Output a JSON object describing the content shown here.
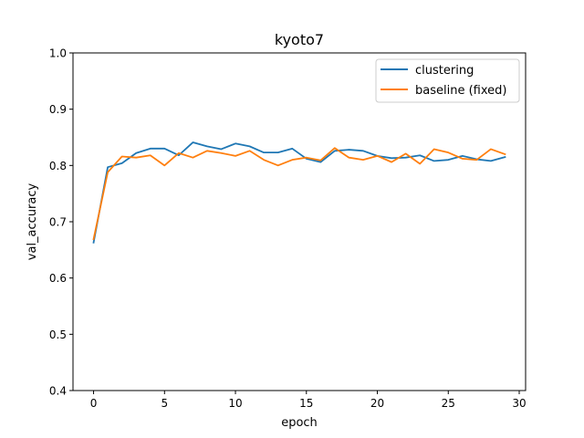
{
  "chart_data": {
    "type": "line",
    "title": "kyoto7",
    "xlabel": "epoch",
    "ylabel": "val_accuracy",
    "xlim": [
      -1.45,
      30.45
    ],
    "ylim": [
      0.4,
      1.0
    ],
    "xticks": [
      0,
      5,
      10,
      15,
      20,
      25,
      30
    ],
    "yticks": [
      0.4,
      0.5,
      0.6,
      0.7,
      0.8,
      0.9,
      1.0
    ],
    "xtick_labels": [
      "0",
      "5",
      "10",
      "15",
      "20",
      "25",
      "30"
    ],
    "ytick_labels": [
      "0.4",
      "0.5",
      "0.6",
      "0.7",
      "0.8",
      "0.9",
      "1.0"
    ],
    "grid": false,
    "legend_position": "top-right",
    "x": [
      0,
      1,
      2,
      3,
      4,
      5,
      6,
      7,
      8,
      9,
      10,
      11,
      12,
      13,
      14,
      15,
      16,
      17,
      18,
      19,
      20,
      21,
      22,
      23,
      24,
      25,
      26,
      27,
      28,
      29
    ],
    "series": [
      {
        "name": "clustering",
        "color": "#1f77b4",
        "values": [
          0.663,
          0.797,
          0.804,
          0.822,
          0.83,
          0.83,
          0.818,
          0.841,
          0.834,
          0.829,
          0.839,
          0.834,
          0.823,
          0.823,
          0.83,
          0.812,
          0.806,
          0.826,
          0.828,
          0.826,
          0.817,
          0.813,
          0.814,
          0.818,
          0.808,
          0.81,
          0.817,
          0.811,
          0.808,
          0.815
        ]
      },
      {
        "name": "baseline (fixed)",
        "color": "#ff7f0e",
        "values": [
          0.669,
          0.788,
          0.816,
          0.814,
          0.818,
          0.8,
          0.822,
          0.814,
          0.826,
          0.822,
          0.817,
          0.826,
          0.81,
          0.8,
          0.81,
          0.814,
          0.809,
          0.831,
          0.814,
          0.81,
          0.817,
          0.806,
          0.821,
          0.803,
          0.829,
          0.823,
          0.812,
          0.81,
          0.829,
          0.82
        ]
      }
    ]
  }
}
